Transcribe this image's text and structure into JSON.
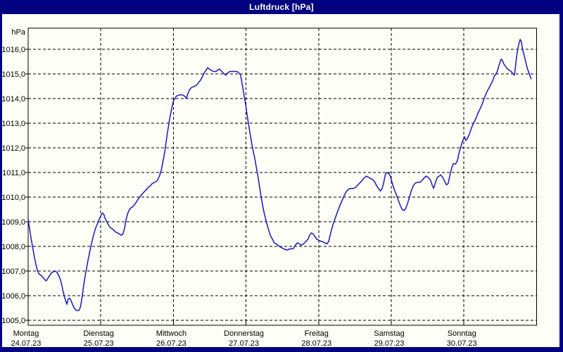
{
  "window": {
    "title": "Luftdruck [hPa]"
  },
  "colors": {
    "frame": "#000080",
    "title_text": "#ffffff",
    "window_bg": "#fdfef6",
    "plot_bg": "#fdfef6",
    "axis": "#000000",
    "grid": "#000000",
    "label_text": "#000000",
    "line": "#1818c8"
  },
  "chart_data": {
    "type": "line",
    "title": "Luftdruck [hPa]",
    "ylabel": "hPa",
    "unit_label": "hPa",
    "ylim": [
      1005,
      1016
    ],
    "grid": "dashed",
    "legend_position": "none",
    "hours_per_day": 24,
    "x_axis_total_hours": 168,
    "y_ticks": [
      {
        "value": 1016,
        "label": "1016,0"
      },
      {
        "value": 1015,
        "label": "1015,0"
      },
      {
        "value": 1014,
        "label": "1014,0"
      },
      {
        "value": 1013,
        "label": "1013,0"
      },
      {
        "value": 1012,
        "label": "1012,0"
      },
      {
        "value": 1011,
        "label": "1011,0"
      },
      {
        "value": 1010,
        "label": "1010,0"
      },
      {
        "value": 1009,
        "label": "1009,0"
      },
      {
        "value": 1008,
        "label": "1008,0"
      },
      {
        "value": 1007,
        "label": "1007,0"
      },
      {
        "value": 1006,
        "label": "1006,0"
      },
      {
        "value": 1005,
        "label": "1005,0"
      }
    ],
    "x_days": [
      {
        "name": "Montag",
        "date": "24.07.23"
      },
      {
        "name": "Dienstag",
        "date": "25.07.23"
      },
      {
        "name": "Mittwoch",
        "date": "26.07.23"
      },
      {
        "name": "Donnerstag",
        "date": "27.07.23"
      },
      {
        "name": "Freitag",
        "date": "28.07.23"
      },
      {
        "name": "Samstag",
        "date": "29.07.23"
      },
      {
        "name": "Sonntag",
        "date": "30.07.23"
      }
    ],
    "series": [
      {
        "name": "Luftdruck",
        "unit": "hPa",
        "points": [
          [
            0,
            1009.1
          ],
          [
            0.5,
            1008.7
          ],
          [
            1,
            1008.3
          ],
          [
            1.5,
            1007.95
          ],
          [
            2,
            1007.6
          ],
          [
            2.5,
            1007.3
          ],
          [
            3,
            1007.05
          ],
          [
            3.5,
            1006.9
          ],
          [
            4.5,
            1006.8
          ],
          [
            5.5,
            1006.65
          ],
          [
            6,
            1006.6
          ],
          [
            6.5,
            1006.7
          ],
          [
            7,
            1006.8
          ],
          [
            7.5,
            1006.9
          ],
          [
            8,
            1006.95
          ],
          [
            9,
            1007
          ],
          [
            9.5,
            1006.95
          ],
          [
            10,
            1006.85
          ],
          [
            10.5,
            1006.7
          ],
          [
            11,
            1006.5
          ],
          [
            11.5,
            1006.2
          ],
          [
            12,
            1005.95
          ],
          [
            12.5,
            1005.75
          ],
          [
            12.8,
            1005.65
          ],
          [
            13.2,
            1005.85
          ],
          [
            13.6,
            1005.9
          ],
          [
            14,
            1005.85
          ],
          [
            14.5,
            1005.7
          ],
          [
            15,
            1005.55
          ],
          [
            15.5,
            1005.45
          ],
          [
            16,
            1005.4
          ],
          [
            16.8,
            1005.4
          ],
          [
            17.3,
            1005.55
          ],
          [
            17.8,
            1005.9
          ],
          [
            18.2,
            1006.3
          ],
          [
            18.7,
            1006.7
          ],
          [
            19.2,
            1007.05
          ],
          [
            19.8,
            1007.45
          ],
          [
            20.3,
            1007.75
          ],
          [
            21,
            1008.15
          ],
          [
            21.7,
            1008.5
          ],
          [
            22.3,
            1008.75
          ],
          [
            23,
            1008.95
          ],
          [
            23.5,
            1009.1
          ],
          [
            24.2,
            1009.3
          ],
          [
            24.6,
            1009.35
          ],
          [
            25,
            1009.3
          ],
          [
            25.4,
            1009.15
          ],
          [
            26,
            1009
          ],
          [
            26.6,
            1008.85
          ],
          [
            27.3,
            1008.75
          ],
          [
            28,
            1008.7
          ],
          [
            28.7,
            1008.6
          ],
          [
            29.5,
            1008.55
          ],
          [
            30.2,
            1008.5
          ],
          [
            30.8,
            1008.45
          ],
          [
            31.3,
            1008.5
          ],
          [
            31.8,
            1008.7
          ],
          [
            32.3,
            1009.05
          ],
          [
            32.8,
            1009.3
          ],
          [
            33.3,
            1009.45
          ],
          [
            33.8,
            1009.55
          ],
          [
            34.5,
            1009.6
          ],
          [
            35.2,
            1009.7
          ],
          [
            36,
            1009.85
          ],
          [
            36.8,
            1010
          ],
          [
            37.5,
            1010.1
          ],
          [
            38.2,
            1010.2
          ],
          [
            39,
            1010.3
          ],
          [
            39.7,
            1010.4
          ],
          [
            40.3,
            1010.45
          ],
          [
            41,
            1010.55
          ],
          [
            41.8,
            1010.6
          ],
          [
            42.5,
            1010.65
          ],
          [
            43,
            1010.75
          ],
          [
            43.5,
            1010.9
          ],
          [
            44,
            1011.1
          ],
          [
            44.4,
            1011.35
          ],
          [
            44.8,
            1011.6
          ],
          [
            45.2,
            1011.9
          ],
          [
            45.6,
            1012.25
          ],
          [
            46,
            1012.6
          ],
          [
            46.4,
            1012.9
          ],
          [
            46.8,
            1013.2
          ],
          [
            47.2,
            1013.45
          ],
          [
            47.6,
            1013.7
          ],
          [
            48,
            1013.9
          ],
          [
            48.5,
            1014
          ],
          [
            49,
            1014.1
          ],
          [
            50,
            1014.15
          ],
          [
            51,
            1014.15
          ],
          [
            51.7,
            1014.1
          ],
          [
            52.3,
            1014
          ],
          [
            52.8,
            1014.2
          ],
          [
            53.3,
            1014.35
          ],
          [
            54,
            1014.45
          ],
          [
            55,
            1014.5
          ],
          [
            55.7,
            1014.55
          ],
          [
            56.3,
            1014.65
          ],
          [
            57,
            1014.75
          ],
          [
            57.6,
            1014.9
          ],
          [
            58.2,
            1015.05
          ],
          [
            58.8,
            1015.15
          ],
          [
            59.3,
            1015.25
          ],
          [
            59.9,
            1015.2
          ],
          [
            60.5,
            1015.15
          ],
          [
            61.2,
            1015.1
          ],
          [
            62,
            1015.1
          ],
          [
            62.6,
            1015.15
          ],
          [
            63.2,
            1015.2
          ],
          [
            64,
            1015.1
          ],
          [
            64.8,
            1015
          ],
          [
            65.4,
            1014.95
          ],
          [
            66,
            1015.05
          ],
          [
            66.7,
            1015.1
          ],
          [
            67.5,
            1015.1
          ],
          [
            68.3,
            1015.1
          ],
          [
            69,
            1015.1
          ],
          [
            69.6,
            1015.05
          ],
          [
            70.2,
            1014.95
          ],
          [
            70.7,
            1014.6
          ],
          [
            71.2,
            1014.25
          ],
          [
            71.6,
            1013.95
          ],
          [
            72,
            1013.65
          ],
          [
            72.4,
            1013.3
          ],
          [
            72.8,
            1013
          ],
          [
            73.3,
            1012.6
          ],
          [
            73.8,
            1012.25
          ],
          [
            74.4,
            1011.85
          ],
          [
            75,
            1011.5
          ],
          [
            75.5,
            1011.15
          ],
          [
            76,
            1010.8
          ],
          [
            76.5,
            1010.4
          ],
          [
            77,
            1010
          ],
          [
            77.5,
            1009.65
          ],
          [
            78,
            1009.35
          ],
          [
            78.7,
            1009
          ],
          [
            79.4,
            1008.7
          ],
          [
            80,
            1008.45
          ],
          [
            80.7,
            1008.3
          ],
          [
            81.3,
            1008.15
          ],
          [
            82,
            1008.1
          ],
          [
            83,
            1008
          ],
          [
            83.7,
            1007.95
          ],
          [
            84.5,
            1007.9
          ],
          [
            85.5,
            1007.85
          ],
          [
            86.5,
            1007.9
          ],
          [
            87.5,
            1007.9
          ],
          [
            88.3,
            1008.05
          ],
          [
            89,
            1008.15
          ],
          [
            89.6,
            1008.1
          ],
          [
            90.2,
            1008.05
          ],
          [
            91,
            1008.1
          ],
          [
            91.8,
            1008.2
          ],
          [
            92.5,
            1008.3
          ],
          [
            93,
            1008.45
          ],
          [
            93.6,
            1008.55
          ],
          [
            94.2,
            1008.5
          ],
          [
            94.8,
            1008.4
          ],
          [
            95.3,
            1008.3
          ],
          [
            96,
            1008.25
          ],
          [
            97,
            1008.2
          ],
          [
            98,
            1008.15
          ],
          [
            98.7,
            1008.1
          ],
          [
            99.3,
            1008.2
          ],
          [
            99.8,
            1008.45
          ],
          [
            100.3,
            1008.7
          ],
          [
            100.9,
            1008.95
          ],
          [
            101.5,
            1009.15
          ],
          [
            102.2,
            1009.4
          ],
          [
            103,
            1009.65
          ],
          [
            103.7,
            1009.85
          ],
          [
            104.4,
            1010.05
          ],
          [
            105,
            1010.2
          ],
          [
            105.7,
            1010.3
          ],
          [
            106.4,
            1010.35
          ],
          [
            107.5,
            1010.35
          ],
          [
            108.3,
            1010.4
          ],
          [
            109,
            1010.5
          ],
          [
            109.8,
            1010.6
          ],
          [
            110.5,
            1010.7
          ],
          [
            111.2,
            1010.8
          ],
          [
            111.9,
            1010.85
          ],
          [
            112.5,
            1010.8
          ],
          [
            113.2,
            1010.75
          ],
          [
            114,
            1010.7
          ],
          [
            114.6,
            1010.6
          ],
          [
            115.2,
            1010.45
          ],
          [
            115.8,
            1010.35
          ],
          [
            116.4,
            1010.25
          ],
          [
            117,
            1010.35
          ],
          [
            117.5,
            1010.6
          ],
          [
            118,
            1010.9
          ],
          [
            118.5,
            1011
          ],
          [
            119.2,
            1010.95
          ],
          [
            119.7,
            1010.85
          ],
          [
            120,
            1010.7
          ],
          [
            120.5,
            1010.5
          ],
          [
            121,
            1010.3
          ],
          [
            121.7,
            1010.1
          ],
          [
            122.4,
            1009.85
          ],
          [
            123,
            1009.65
          ],
          [
            123.6,
            1009.5
          ],
          [
            124.2,
            1009.45
          ],
          [
            124.8,
            1009.55
          ],
          [
            125.4,
            1009.75
          ],
          [
            126,
            1010
          ],
          [
            126.6,
            1010.25
          ],
          [
            127.2,
            1010.45
          ],
          [
            127.8,
            1010.55
          ],
          [
            128.5,
            1010.6
          ],
          [
            129.5,
            1010.6
          ],
          [
            130.3,
            1010.7
          ],
          [
            131,
            1010.8
          ],
          [
            131.5,
            1010.85
          ],
          [
            132.2,
            1010.8
          ],
          [
            132.9,
            1010.7
          ],
          [
            133.5,
            1010.5
          ],
          [
            134,
            1010.35
          ],
          [
            134.6,
            1010.6
          ],
          [
            135.2,
            1010.8
          ],
          [
            135.8,
            1010.85
          ],
          [
            136.3,
            1010.9
          ],
          [
            137,
            1010.8
          ],
          [
            137.6,
            1010.65
          ],
          [
            138.2,
            1010.5
          ],
          [
            138.8,
            1010.55
          ],
          [
            139.4,
            1010.9
          ],
          [
            140,
            1011.2
          ],
          [
            140.5,
            1011.35
          ],
          [
            141.3,
            1011.35
          ],
          [
            141.9,
            1011.5
          ],
          [
            142.4,
            1011.8
          ],
          [
            143,
            1012.05
          ],
          [
            143.5,
            1012.25
          ],
          [
            144,
            1012.4
          ],
          [
            144.2,
            1012.45
          ],
          [
            144.6,
            1012.3
          ],
          [
            145,
            1012.35
          ],
          [
            145.6,
            1012.5
          ],
          [
            146.2,
            1012.7
          ],
          [
            146.8,
            1012.9
          ],
          [
            147.4,
            1013.05
          ],
          [
            148,
            1013.2
          ],
          [
            148.6,
            1013.4
          ],
          [
            149.2,
            1013.55
          ],
          [
            149.8,
            1013.7
          ],
          [
            150.4,
            1013.9
          ],
          [
            151,
            1014.1
          ],
          [
            151.7,
            1014.3
          ],
          [
            152.4,
            1014.45
          ],
          [
            153,
            1014.6
          ],
          [
            153.6,
            1014.75
          ],
          [
            154,
            1014.9
          ],
          [
            154.6,
            1015
          ],
          [
            155,
            1015.1
          ],
          [
            155.6,
            1015.35
          ],
          [
            156,
            1015.5
          ],
          [
            156.3,
            1015.6
          ],
          [
            156.7,
            1015.55
          ],
          [
            157.2,
            1015.4
          ],
          [
            157.8,
            1015.3
          ],
          [
            158.4,
            1015.2
          ],
          [
            159,
            1015.15
          ],
          [
            159.6,
            1015.1
          ],
          [
            160.2,
            1015
          ],
          [
            160.7,
            1014.95
          ],
          [
            161,
            1015.25
          ],
          [
            161.4,
            1015.7
          ],
          [
            161.8,
            1016
          ],
          [
            162.2,
            1016.25
          ],
          [
            162.6,
            1016.4
          ],
          [
            163,
            1016.3
          ],
          [
            163.3,
            1016.05
          ],
          [
            163.7,
            1015.85
          ],
          [
            164.2,
            1015.6
          ],
          [
            164.6,
            1015.4
          ],
          [
            165,
            1015.2
          ],
          [
            165.5,
            1015.05
          ],
          [
            165.9,
            1014.9
          ],
          [
            166.2,
            1014.8
          ]
        ]
      }
    ]
  }
}
